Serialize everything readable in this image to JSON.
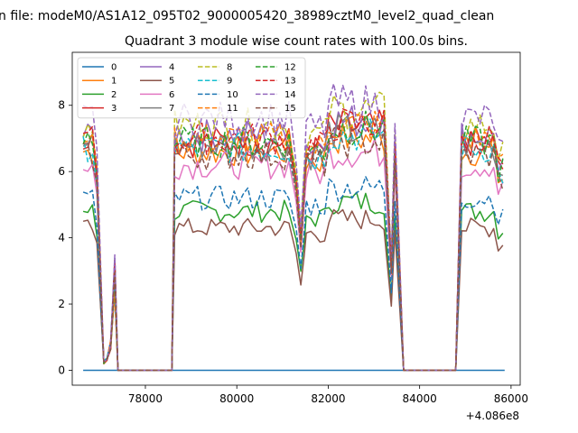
{
  "chart_data": {
    "type": "line",
    "suptitle": "n file: modeM0/AS1A12_095T02_9000005420_38989cztM0_level2_quad_clean",
    "title": "Quadrant 3 module wise count rates with 100.0s bins.",
    "xlabel": "",
    "ylabel": "",
    "x_offset_label": "+4.086e8",
    "xlim": [
      76400,
      86200
    ],
    "ylim": [
      -0.45,
      9.6
    ],
    "x_ticks": [
      78000,
      80000,
      82000,
      84000,
      86000
    ],
    "y_ticks": [
      0,
      2,
      4,
      6,
      8
    ],
    "grid": false,
    "legend_position": "upper-left",
    "legend_columns": 4,
    "colors": [
      "#1f77b4",
      "#ff7f0e",
      "#2ca02c",
      "#d62728",
      "#9467bd",
      "#8c564b",
      "#e377c2",
      "#7f7f7f",
      "#bcbd22",
      "#17becf",
      "#1f77b4",
      "#ff7f0e",
      "#2ca02c",
      "#d62728",
      "#9467bd",
      "#8c564b"
    ],
    "series": [
      {
        "name": "0",
        "dashed": false,
        "base": 0.0
      },
      {
        "name": "1",
        "dashed": false,
        "base": 6.6
      },
      {
        "name": "2",
        "dashed": false,
        "base": 4.8
      },
      {
        "name": "3",
        "dashed": false,
        "base": 6.9
      },
      {
        "name": "4",
        "dashed": false,
        "base": 7.1
      },
      {
        "name": "5",
        "dashed": false,
        "base": 4.3
      },
      {
        "name": "6",
        "dashed": false,
        "base": 6.2
      },
      {
        "name": "7",
        "dashed": false,
        "base": 6.8
      },
      {
        "name": "8",
        "dashed": true,
        "base": 7.4
      },
      {
        "name": "9",
        "dashed": true,
        "base": 6.7
      },
      {
        "name": "10",
        "dashed": true,
        "base": 5.2
      },
      {
        "name": "11",
        "dashed": true,
        "base": 7.0
      },
      {
        "name": "12",
        "dashed": true,
        "base": 6.9
      },
      {
        "name": "13",
        "dashed": true,
        "base": 7.0
      },
      {
        "name": "14",
        "dashed": true,
        "base": 7.6
      },
      {
        "name": "15",
        "dashed": true,
        "base": 6.5
      }
    ],
    "segments": [
      {
        "x": [
          76640,
          77000
        ],
        "level": [
          1.0,
          0.95,
          1.05,
          1.0,
          0.9
        ]
      },
      {
        "x": [
          77280,
          77380
        ],
        "spike": 3.3
      },
      {
        "x": [
          78640,
          81200
        ],
        "level": [
          1.0,
          1.0
        ]
      },
      {
        "x": [
          81420,
          83300
        ],
        "level": [
          1.0,
          1.08
        ]
      },
      {
        "x": [
          84840,
          85860
        ],
        "level": [
          1.0,
          0.95
        ]
      }
    ]
  }
}
